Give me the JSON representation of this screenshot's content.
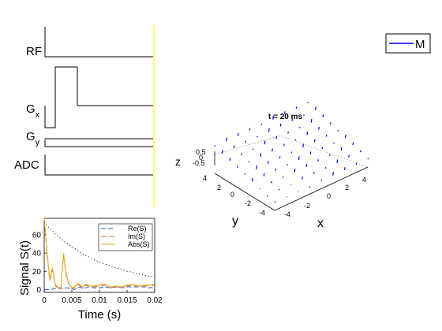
{
  "sequence_diagram": {
    "rows": [
      {
        "label": "RF",
        "sub": ""
      },
      {
        "label": "G",
        "sub": "x"
      },
      {
        "label": "G",
        "sub": "y"
      },
      {
        "label": "ADC",
        "sub": ""
      }
    ],
    "cursor_color": "#ffff66"
  },
  "legend_m": {
    "label": "M",
    "color": "#0000ff"
  },
  "magnetization_plot": {
    "title": "t = 20 ms",
    "xlabel": "x",
    "ylabel": "y",
    "zlabel": "z",
    "x_ticks": [
      "-4",
      "-2",
      "0",
      "2",
      "4"
    ],
    "y_ticks": [
      "-4",
      "-2",
      "0",
      "2",
      "4"
    ],
    "z_ticks": [
      "0.5",
      "0",
      "-0.5"
    ],
    "vector_color": "#0000ff"
  },
  "chart_data": {
    "type": "line",
    "title": "",
    "xlabel": "Time (s)",
    "ylabel": "Signal S(t)",
    "xlim": [
      0,
      0.02
    ],
    "ylim": [
      -3,
      78
    ],
    "x_ticks": [
      "0",
      "0.005",
      "0.01",
      "0.015",
      "0.02"
    ],
    "y_ticks": [
      "0",
      "20",
      "40",
      "60"
    ],
    "legend_position": "top-right",
    "x": [
      0,
      0.0005,
      0.001,
      0.0015,
      0.002,
      0.0025,
      0.003,
      0.0035,
      0.004,
      0.0045,
      0.005,
      0.0055,
      0.006,
      0.0065,
      0.007,
      0.0075,
      0.008,
      0.009,
      0.01,
      0.011,
      0.012,
      0.013,
      0.014,
      0.015,
      0.016,
      0.017,
      0.018,
      0.019,
      0.02
    ],
    "series": [
      {
        "name": "Re(S)",
        "color": "#1f5fbf",
        "dash": "6,3",
        "values": [
          0,
          0,
          0,
          0.5,
          1,
          2,
          2,
          1,
          2,
          1.5,
          1,
          0,
          2,
          3,
          1,
          2,
          3,
          2,
          2,
          3,
          2,
          3,
          2,
          3,
          3,
          3,
          3,
          2,
          3
        ]
      },
      {
        "name": "Im(S)",
        "color": "#d2691e",
        "dash": "6,2,1,2",
        "values": [
          76,
          40,
          10,
          22,
          5,
          1,
          0,
          38,
          15,
          5,
          1,
          2,
          6,
          4,
          2,
          5,
          4,
          3,
          4,
          5,
          2,
          3,
          2,
          4,
          5,
          3,
          4,
          4,
          5
        ]
      },
      {
        "name": "Abs(S)",
        "color": "#e6a817",
        "dash": "",
        "values": [
          78,
          42,
          12,
          24,
          6,
          2,
          1,
          40,
          17,
          6,
          2,
          3,
          7,
          5,
          3,
          6,
          5,
          4,
          5,
          6,
          3,
          4,
          3,
          5,
          6,
          4,
          5,
          5,
          6
        ]
      },
      {
        "name": "",
        "color": "#000000",
        "dash": "1,3",
        "values": [
          74,
          70,
          67,
          64,
          61,
          58,
          56,
          53,
          51,
          49,
          47,
          45,
          43,
          41,
          39,
          37,
          36,
          33,
          30,
          28,
          26,
          24,
          22,
          20,
          19,
          17,
          16,
          15,
          14
        ]
      }
    ]
  }
}
